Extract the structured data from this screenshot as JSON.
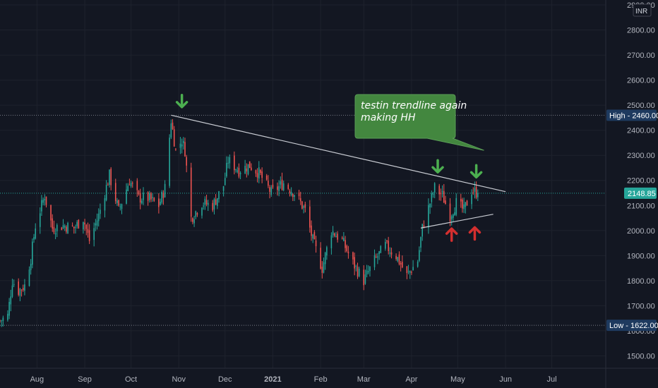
{
  "chart_data": {
    "type": "candlestick",
    "currency": "INR",
    "ylim": [
      1400,
      2900
    ],
    "y_ticks": [
      1500,
      1600,
      1700,
      1800,
      1900,
      2000,
      2100,
      2200,
      2300,
      2400,
      2500,
      2600,
      2700,
      2800,
      2900
    ],
    "y_tick_labels": [
      "1500.00",
      "1600.00",
      "1700.00",
      "1800.00",
      "1900.00",
      "2000.00",
      "2100.00",
      "2200.00",
      "2300.00",
      "2400.00",
      "2500.00",
      "2600.00",
      "2700.00",
      "2800.00",
      "2900.00"
    ],
    "x_labels": [
      "Aug",
      "Sep",
      "Oct",
      "Nov",
      "Dec",
      "2021",
      "Feb",
      "Mar",
      "Apr",
      "May",
      "Jun",
      "Jul"
    ],
    "x_label_dates": [
      "2020-08-01",
      "2020-09-01",
      "2020-10-01",
      "2020-11-01",
      "2020-12-01",
      "2021-01-01",
      "2021-02-01",
      "2021-03-01",
      "2021-04-01",
      "2021-05-01",
      "2021-06-01",
      "2021-07-01"
    ],
    "x_range": [
      "2020-07-08",
      "2021-08-05"
    ],
    "current_price": {
      "label": "2148.85",
      "value": 2148.85,
      "color": "#26a69a"
    },
    "high": {
      "label": "High",
      "value_label": "2460.00",
      "value": 2460
    },
    "low": {
      "label": "Low",
      "value_label": "1622.00",
      "value": 1622
    },
    "close_path": [
      {
        "date": "2020-07-08",
        "close": 1640
      },
      {
        "date": "2020-07-13",
        "close": 1660
      },
      {
        "date": "2020-07-16",
        "close": 1800
      },
      {
        "date": "2020-07-20",
        "close": 1760
      },
      {
        "date": "2020-07-24",
        "close": 1780
      },
      {
        "date": "2020-07-28",
        "close": 1890
      },
      {
        "date": "2020-07-31",
        "close": 2020
      },
      {
        "date": "2020-08-06",
        "close": 2140
      },
      {
        "date": "2020-08-11",
        "close": 2010
      },
      {
        "date": "2020-08-18",
        "close": 2020
      },
      {
        "date": "2020-08-25",
        "close": 2010
      },
      {
        "date": "2020-08-31",
        "close": 2050
      },
      {
        "date": "2020-09-04",
        "close": 1960
      },
      {
        "date": "2020-09-10",
        "close": 2060
      },
      {
        "date": "2020-09-17",
        "close": 2220
      },
      {
        "date": "2020-09-23",
        "close": 2080
      },
      {
        "date": "2020-09-30",
        "close": 2200
      },
      {
        "date": "2020-10-06",
        "close": 2130
      },
      {
        "date": "2020-10-12",
        "close": 2130
      },
      {
        "date": "2020-10-19",
        "close": 2100
      },
      {
        "date": "2020-10-23",
        "close": 2170
      },
      {
        "date": "2020-10-27",
        "close": 2440
      },
      {
        "date": "2020-10-30",
        "close": 2320
      },
      {
        "date": "2020-11-03",
        "close": 2360
      },
      {
        "date": "2020-11-05",
        "close": 2320
      },
      {
        "date": "2020-11-09",
        "close": 2050
      },
      {
        "date": "2020-11-16",
        "close": 2110
      },
      {
        "date": "2020-11-23",
        "close": 2100
      },
      {
        "date": "2020-11-30",
        "close": 2180
      },
      {
        "date": "2020-12-03",
        "close": 2280
      },
      {
        "date": "2020-12-10",
        "close": 2240
      },
      {
        "date": "2020-12-17",
        "close": 2260
      },
      {
        "date": "2020-12-23",
        "close": 2230
      },
      {
        "date": "2020-12-31",
        "close": 2150
      },
      {
        "date": "2021-01-08",
        "close": 2190
      },
      {
        "date": "2021-01-15",
        "close": 2150
      },
      {
        "date": "2021-01-22",
        "close": 2080
      },
      {
        "date": "2021-01-27",
        "close": 1960
      },
      {
        "date": "2021-02-02",
        "close": 1850
      },
      {
        "date": "2021-02-08",
        "close": 2000
      },
      {
        "date": "2021-02-15",
        "close": 1960
      },
      {
        "date": "2021-02-22",
        "close": 1870
      },
      {
        "date": "2021-03-01",
        "close": 1800
      },
      {
        "date": "2021-03-08",
        "close": 1880
      },
      {
        "date": "2021-03-15",
        "close": 1940
      },
      {
        "date": "2021-03-22",
        "close": 1900
      },
      {
        "date": "2021-03-29",
        "close": 1820
      },
      {
        "date": "2021-04-05",
        "close": 1880
      },
      {
        "date": "2021-04-08",
        "close": 2010
      },
      {
        "date": "2021-04-13",
        "close": 2110
      },
      {
        "date": "2021-04-16",
        "close": 2170
      },
      {
        "date": "2021-04-21",
        "close": 2140
      },
      {
        "date": "2021-04-26",
        "close": 2060
      },
      {
        "date": "2021-04-30",
        "close": 2110
      },
      {
        "date": "2021-05-05",
        "close": 2080
      },
      {
        "date": "2021-05-10",
        "close": 2160
      },
      {
        "date": "2021-05-14",
        "close": 2148.85
      }
    ],
    "drawings": {
      "resistance_trendline": {
        "from": {
          "date": "2020-10-27",
          "price": 2460
        },
        "to": {
          "date": "2021-06-01",
          "price": 2155
        }
      },
      "support_trendline": {
        "from": {
          "date": "2021-04-07",
          "price": 2010
        },
        "to": {
          "date": "2021-05-24",
          "price": 2065
        }
      },
      "green_down_arrows": [
        {
          "date": "2020-11-03",
          "price": 2515
        },
        {
          "date": "2021-04-18",
          "price": 2255
        },
        {
          "date": "2021-05-13",
          "price": 2235
        }
      ],
      "red_up_arrows": [
        {
          "date": "2021-04-27",
          "price": 1985
        },
        {
          "date": "2021-05-12",
          "price": 1990
        }
      ],
      "callout": {
        "lines": [
          "testin trendline again",
          "making HH"
        ],
        "fill": "#43873f",
        "pointer_to": {
          "date": "2021-05-18",
          "price": 2320
        }
      }
    },
    "colors": {
      "up": "#26a69a",
      "down": "#ef5350",
      "background": "#131722",
      "trendline": "#c9ccd3",
      "arrow_green": "#4caf50",
      "arrow_red": "#d32f2f"
    }
  }
}
